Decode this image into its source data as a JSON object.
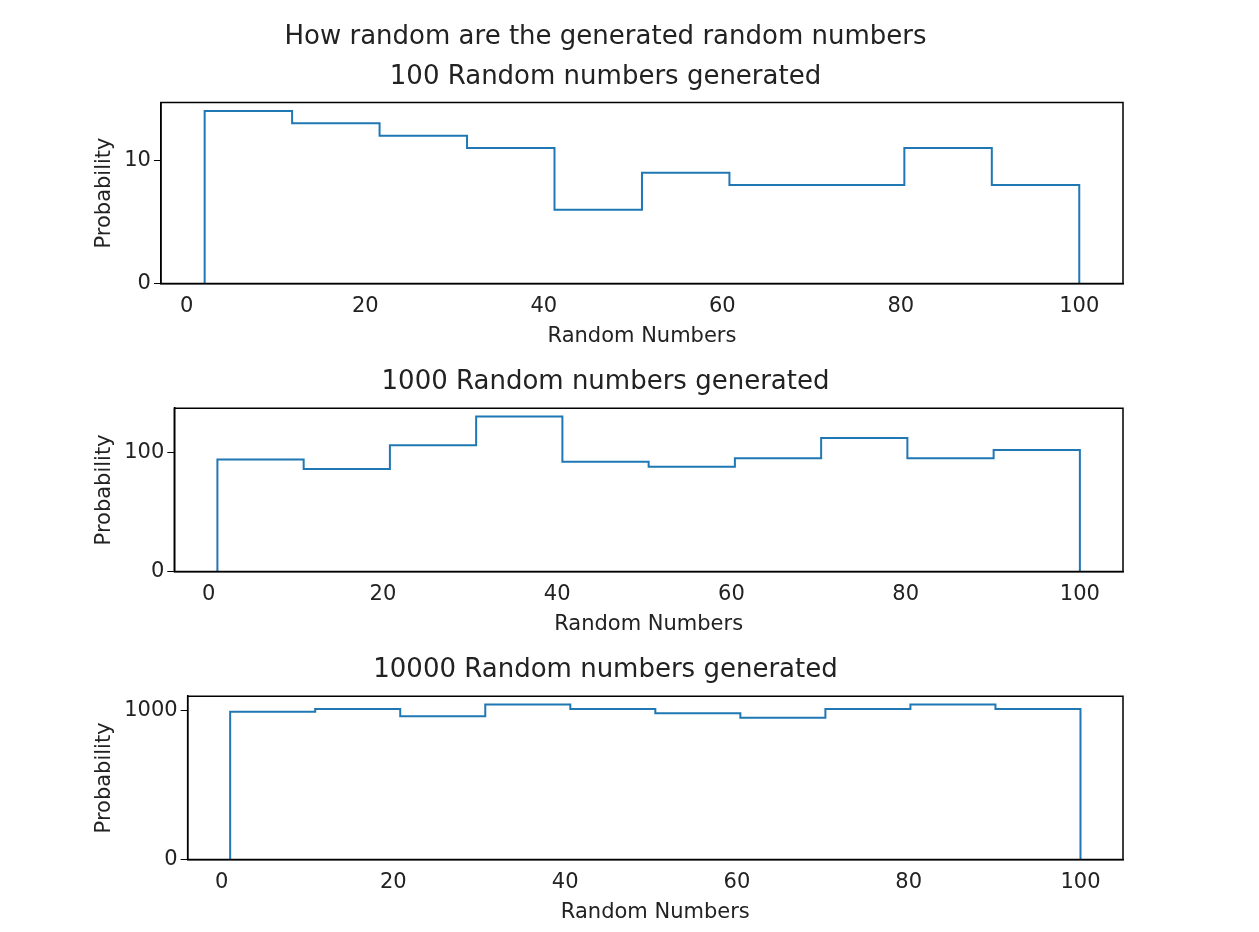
{
  "chart_data": [
    {
      "type": "histogram",
      "title": "How random are the generated random numbers",
      "subtitle": "100 Random numbers generated",
      "xlabel": "Random Numbers",
      "ylabel": "Probability",
      "color": "#1f77b4",
      "bins": [
        2,
        11.8,
        21.6,
        31.4,
        41.2,
        51,
        60.8,
        70.6,
        80.4,
        90.2,
        100
      ],
      "values": [
        14,
        13,
        12,
        11,
        6,
        9,
        8,
        8,
        11,
        8
      ],
      "xlim": [
        -2.9,
        104.9
      ],
      "ylim": [
        0,
        14.7
      ],
      "xticks": [
        0,
        20,
        40,
        60,
        80,
        100
      ],
      "yticks": [
        0,
        10
      ],
      "grid": false
    },
    {
      "type": "histogram",
      "title": "1000 Random numbers generated",
      "xlabel": "Random Numbers",
      "ylabel": "Probability",
      "color": "#1f77b4",
      "bins": [
        1,
        10.9,
        20.8,
        30.7,
        40.6,
        50.5,
        60.4,
        70.3,
        80.2,
        90.1,
        100
      ],
      "values": [
        94,
        86,
        106,
        130,
        92,
        88,
        95,
        112,
        95,
        102
      ],
      "xlim": [
        -3.95,
        104.95
      ],
      "ylim": [
        0,
        137
      ],
      "xticks": [
        0,
        20,
        40,
        60,
        80,
        100
      ],
      "yticks": [
        0,
        100
      ],
      "grid": false
    },
    {
      "type": "histogram",
      "title": "10000 Random numbers generated",
      "xlabel": "Random Numbers",
      "ylabel": "Probability",
      "color": "#1f77b4",
      "bins": [
        1,
        10.9,
        20.8,
        30.7,
        40.6,
        50.5,
        60.4,
        70.3,
        80.2,
        90.1,
        100
      ],
      "values": [
        990,
        1010,
        960,
        1040,
        1010,
        980,
        950,
        1010,
        1040,
        1010
      ],
      "xlim": [
        -3.95,
        104.95
      ],
      "ylim": [
        0,
        1095
      ],
      "xticks": [
        0,
        20,
        40,
        60,
        80,
        100
      ],
      "yticks": [
        0,
        1000
      ],
      "grid": false
    }
  ]
}
